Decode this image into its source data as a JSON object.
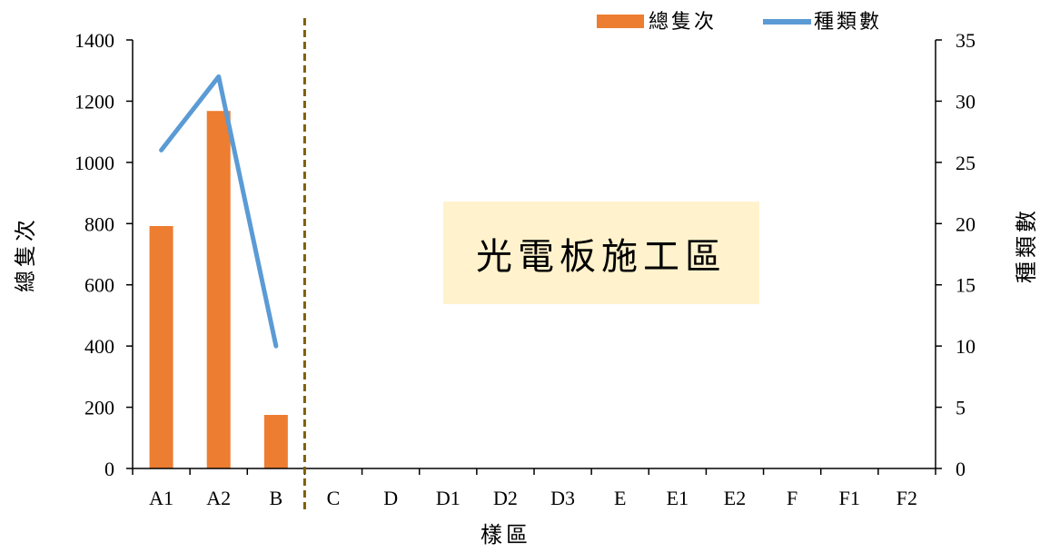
{
  "chart_data": {
    "type": "bar",
    "categories": [
      "A1",
      "A2",
      "B",
      "C",
      "D",
      "D1",
      "D2",
      "D3",
      "E",
      "E1",
      "E2",
      "F",
      "F1",
      "F2"
    ],
    "series": [
      {
        "name": "總隻次",
        "type": "bar",
        "axis": "left",
        "color": "#ED7D31",
        "values": [
          792,
          1168,
          175,
          null,
          null,
          null,
          null,
          null,
          null,
          null,
          null,
          null,
          null,
          null
        ]
      },
      {
        "name": "種類數",
        "type": "line",
        "axis": "right",
        "color": "#5B9BD5",
        "values": [
          26,
          32,
          10,
          null,
          null,
          null,
          null,
          null,
          null,
          null,
          null,
          null,
          null,
          null
        ]
      }
    ],
    "xlabel": "樣區",
    "ylabel": "總隻次",
    "y2label": "種類數",
    "ylim": [
      0,
      1400
    ],
    "y2lim": [
      0,
      35
    ],
    "yticks": [
      "0",
      "200",
      "400",
      "600",
      "800",
      "1000",
      "1200",
      "1400"
    ],
    "y2ticks": [
      "0",
      "5",
      "10",
      "15",
      "20",
      "25",
      "30",
      "35"
    ],
    "legend_position": "top-right",
    "annotation": {
      "text": "光電板施工區",
      "background": "#FFF2CC"
    },
    "divider": {
      "after_category": "B",
      "style": "dashed",
      "color": "#7F6000"
    }
  }
}
